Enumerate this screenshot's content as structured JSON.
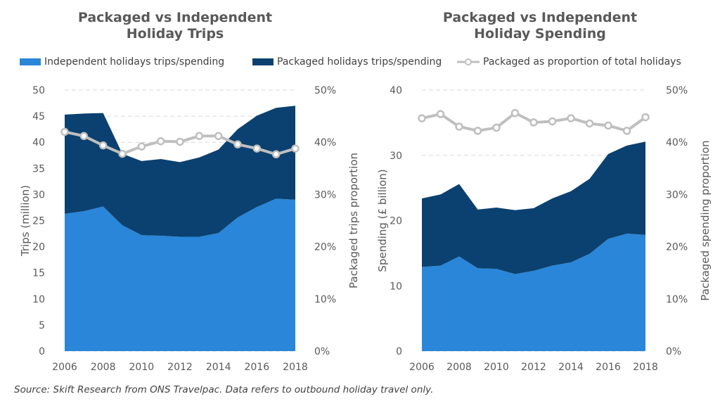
{
  "legend": {
    "independent": "Independent holidays trips/spending",
    "packaged": "Packaged holidays trips/spending",
    "proportion": "Packaged as proportion of total holidays"
  },
  "colors": {
    "independent": "#2a86d8",
    "packaged": "#0b4170",
    "proportion": "#bfbfbf",
    "grid": "#d9d9d9",
    "text": "#595959"
  },
  "source": "Source: Skift Research from ONS Travelpac. Data refers to outbound holiday travel only.",
  "chart_data": [
    {
      "type": "area",
      "title": [
        "Packaged vs Independent",
        "Holiday Trips"
      ],
      "ylabel": "Trips (million)",
      "y2label": "Packaged trips proportion",
      "x": [
        2006,
        2007,
        2008,
        2009,
        2010,
        2011,
        2012,
        2013,
        2014,
        2015,
        2016,
        2017,
        2018
      ],
      "xticks": [
        "2006",
        "2008",
        "2010",
        "2012",
        "2014",
        "2016",
        "2018"
      ],
      "ylim": [
        0,
        50
      ],
      "yticks": [
        "0",
        "5",
        "10",
        "15",
        "20",
        "25",
        "30",
        "35",
        "40",
        "45",
        "50"
      ],
      "y2lim": [
        0,
        0.5
      ],
      "y2ticks": [
        "0%",
        "10%",
        "20%",
        "30%",
        "40%",
        "50%"
      ],
      "grid": true,
      "series": [
        {
          "name": "Independent holidays trips/spending",
          "kind": "area",
          "values": [
            26.3,
            26.8,
            27.7,
            24.1,
            22.2,
            22.1,
            21.9,
            21.9,
            22.6,
            25.6,
            27.6,
            29.2,
            29.0
          ]
        },
        {
          "name": "Packaged holidays trips/spending",
          "kind": "stacked-area",
          "values": [
            19.0,
            18.7,
            17.9,
            13.7,
            14.2,
            14.7,
            14.3,
            15.2,
            16.0,
            16.9,
            17.5,
            17.4,
            18.0
          ]
        },
        {
          "name": "Packaged as proportion of total holidays",
          "kind": "line",
          "axis": "secondary",
          "values": [
            0.42,
            0.412,
            0.394,
            0.378,
            0.392,
            0.402,
            0.401,
            0.412,
            0.412,
            0.396,
            0.388,
            0.377,
            0.388
          ]
        }
      ]
    },
    {
      "type": "area",
      "title": [
        "Packaged vs Independent",
        "Holiday Spending"
      ],
      "ylabel": "Spending (£ billion)",
      "y2label": "Packaged spending proportion",
      "x": [
        2006,
        2007,
        2008,
        2009,
        2010,
        2011,
        2012,
        2013,
        2014,
        2015,
        2016,
        2017,
        2018
      ],
      "xticks": [
        "2006",
        "2008",
        "2010",
        "2012",
        "2014",
        "2016",
        "2018"
      ],
      "ylim": [
        0,
        40
      ],
      "yticks": [
        "0",
        "10",
        "20",
        "30",
        "40"
      ],
      "y2lim": [
        0,
        0.5
      ],
      "y2ticks": [
        "0%",
        "10%",
        "20%",
        "30%",
        "40%",
        "50%"
      ],
      "grid": true,
      "series": [
        {
          "name": "Independent holidays trips/spending",
          "kind": "area",
          "values": [
            12.9,
            13.1,
            14.5,
            12.7,
            12.6,
            11.8,
            12.3,
            13.1,
            13.6,
            14.9,
            17.2,
            18.0,
            17.8
          ]
        },
        {
          "name": "Packaged holidays trips/spending",
          "kind": "stacked-area",
          "values": [
            10.5,
            10.9,
            11.1,
            9.0,
            9.4,
            9.8,
            9.6,
            10.3,
            10.9,
            11.5,
            13.0,
            13.5,
            14.3
          ]
        },
        {
          "name": "Packaged as proportion of total holidays",
          "kind": "line",
          "axis": "secondary",
          "values": [
            0.446,
            0.454,
            0.43,
            0.422,
            0.428,
            0.456,
            0.438,
            0.44,
            0.446,
            0.436,
            0.432,
            0.422,
            0.448
          ]
        }
      ]
    }
  ]
}
